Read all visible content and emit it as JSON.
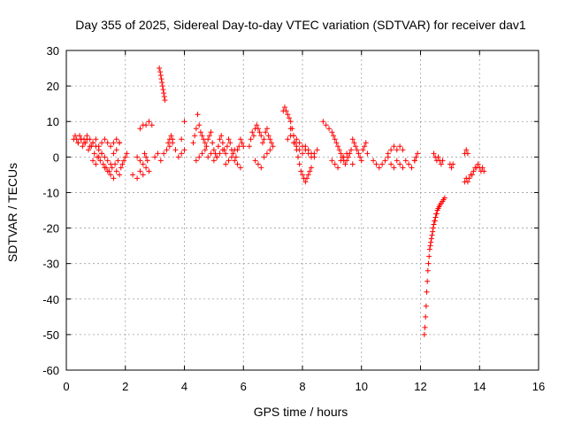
{
  "chart_data": {
    "type": "scatter",
    "title": "Day 355 of 2025, Sidereal Day-to-day VTEC variation (SDTVAR) for receiver dav1",
    "xlabel": "GPS time / hours",
    "ylabel": "SDTVAR / TECUs",
    "xlim": [
      0,
      16
    ],
    "ylim": [
      -60,
      30
    ],
    "xticks": [
      0,
      2,
      4,
      6,
      8,
      10,
      12,
      14,
      16
    ],
    "yticks": [
      -60,
      -50,
      -40,
      -30,
      -20,
      -10,
      0,
      10,
      20,
      30
    ],
    "grid": true,
    "marker": "+",
    "color": "#ff0000",
    "series": [
      {
        "name": "dav1",
        "x": [
          0.25,
          0.3,
          0.35,
          0.4,
          0.45,
          0.5,
          0.55,
          0.6,
          0.65,
          0.7,
          0.75,
          0.8,
          0.85,
          0.9,
          0.95,
          1.0,
          1.05,
          1.1,
          1.15,
          1.2,
          1.25,
          1.3,
          1.35,
          1.4,
          1.45,
          1.5,
          1.55,
          1.6,
          1.65,
          1.7,
          1.75,
          1.8,
          1.85,
          1.9,
          1.95,
          2.0,
          2.05,
          0.4,
          0.5,
          0.6,
          0.7,
          0.8,
          0.9,
          1.0,
          1.1,
          1.2,
          1.3,
          1.4,
          1.5,
          1.6,
          1.7,
          1.8,
          0.9,
          1.0,
          1.1,
          1.2,
          1.3,
          1.4,
          1.5,
          1.6,
          1.7,
          1.8,
          2.25,
          2.4,
          2.5,
          2.6,
          2.7,
          2.8,
          2.4,
          2.5,
          2.6,
          2.65,
          2.7,
          2.75,
          2.5,
          2.6,
          2.7,
          2.8,
          2.9,
          3.0,
          3.1,
          3.15,
          3.18,
          3.2,
          3.22,
          3.24,
          3.26,
          3.28,
          3.3,
          3.32,
          3.34,
          3.2,
          3.3,
          3.4,
          3.5,
          3.6,
          3.7,
          3.8,
          3.9,
          4.0,
          3.45,
          3.5,
          3.55,
          3.6,
          3.9,
          4.0,
          4.3,
          4.35,
          4.4,
          4.45,
          4.5,
          4.55,
          4.6,
          4.65,
          4.7,
          4.75,
          4.8,
          4.85,
          4.9,
          4.95,
          5.0,
          5.05,
          5.1,
          5.15,
          5.2,
          5.25,
          5.3,
          5.35,
          5.4,
          5.45,
          5.5,
          5.55,
          5.6,
          5.65,
          5.7,
          5.75,
          5.8,
          5.85,
          5.9,
          5.95,
          6.0,
          4.4,
          4.5,
          4.6,
          4.7,
          4.8,
          4.9,
          5.0,
          5.1,
          5.2,
          5.3,
          5.4,
          5.5,
          5.6,
          5.7,
          5.8,
          5.9,
          6.2,
          6.25,
          6.3,
          6.35,
          6.4,
          6.45,
          6.5,
          6.55,
          6.6,
          6.65,
          6.7,
          6.75,
          6.8,
          6.85,
          6.9,
          6.95,
          7.0,
          6.4,
          6.5,
          6.6,
          6.7,
          6.8,
          6.9,
          7.35,
          7.4,
          7.45,
          7.5,
          7.55,
          7.6,
          7.65,
          7.7,
          7.75,
          7.8,
          7.85,
          7.9,
          7.95,
          8.0,
          8.05,
          8.1,
          8.15,
          8.2,
          8.25,
          8.3,
          7.6,
          7.7,
          7.8,
          7.9,
          8.0,
          8.1,
          8.2,
          8.3,
          8.4,
          8.5,
          7.5,
          7.6,
          7.7,
          7.8,
          7.9,
          8.0,
          8.1,
          8.2,
          8.3,
          8.4,
          8.7,
          8.8,
          8.9,
          9.0,
          9.05,
          9.1,
          9.15,
          9.2,
          9.25,
          9.3,
          9.35,
          9.4,
          9.45,
          9.5,
          9.55,
          9.6,
          9.65,
          9.7,
          9.0,
          9.1,
          9.2,
          9.3,
          9.4,
          9.5,
          9.7,
          9.75,
          9.8,
          9.85,
          9.9,
          9.95,
          10.0,
          10.05,
          10.1,
          10.15,
          10.2,
          10.4,
          10.5,
          10.6,
          10.7,
          10.8,
          10.9,
          11.0,
          11.1,
          11.2,
          11.3,
          11.4,
          11.5,
          11.6,
          11.7,
          11.8,
          10.9,
          11.0,
          11.1,
          11.2,
          11.3,
          11.4,
          11.8,
          11.85,
          11.9,
          12.13,
          12.15,
          12.17,
          12.19,
          12.21,
          12.23,
          12.25,
          12.27,
          12.29,
          12.31,
          12.33,
          12.35,
          12.37,
          12.39,
          12.41,
          12.43,
          12.45,
          12.47,
          12.49,
          12.51,
          12.53,
          12.55,
          12.57,
          12.6,
          12.63,
          12.66,
          12.7,
          12.74,
          12.78,
          12.82,
          12.45,
          12.5,
          12.55,
          12.6,
          12.65,
          12.7,
          12.75,
          13.0,
          13.05,
          13.1,
          13.5,
          13.55,
          13.6,
          13.65,
          13.7,
          13.75,
          13.8,
          13.85,
          13.9,
          13.95,
          14.0,
          14.05,
          14.1,
          14.15,
          13.5,
          13.55,
          13.6
        ],
        "y": [
          5,
          6,
          5,
          4,
          6,
          5,
          3,
          5,
          4,
          6,
          2,
          5,
          3,
          4,
          1,
          3,
          0,
          2,
          -1,
          1,
          -2,
          0,
          -3,
          -1,
          -4,
          -5,
          -3,
          -6,
          -2,
          -4,
          -1,
          -5,
          -3,
          -2,
          -1,
          0,
          1,
          4,
          5,
          4,
          5,
          3,
          4,
          5,
          3,
          4,
          5,
          4,
          3,
          4,
          5,
          4,
          -1,
          -2,
          0,
          1,
          -3,
          -4,
          -2,
          1,
          2,
          4,
          -5,
          -6,
          -4,
          -5,
          -3,
          -4,
          0,
          -1,
          -2,
          1,
          0,
          -1,
          8,
          9,
          9,
          10,
          9,
          0,
          1,
          25,
          24,
          23,
          22,
          21,
          20,
          19,
          18,
          17,
          16,
          -1,
          1,
          2,
          3,
          4,
          2,
          0,
          1,
          2,
          4,
          5,
          6,
          5,
          5,
          10,
          4,
          6,
          8,
          12,
          9,
          7,
          6,
          5,
          4,
          3,
          5,
          6,
          7,
          4,
          2,
          1,
          0,
          3,
          5,
          6,
          4,
          2,
          1,
          3,
          5,
          4,
          2,
          1,
          -1,
          0,
          2,
          3,
          5,
          4,
          3,
          -1,
          0,
          1,
          2,
          0,
          1,
          -1,
          0,
          1,
          2,
          -2,
          -1,
          0,
          2,
          -2,
          -3,
          3,
          5,
          7,
          6,
          8,
          9,
          8,
          7,
          6,
          4,
          5,
          7,
          8,
          6,
          5,
          4,
          3,
          -1,
          -2,
          -3,
          0,
          1,
          2,
          13,
          14,
          13,
          12,
          11,
          10,
          8,
          6,
          4,
          2,
          0,
          -2,
          -4,
          -5,
          -6,
          -7,
          -6,
          -5,
          -4,
          -3,
          8,
          6,
          5,
          4,
          3,
          2,
          1,
          0,
          1,
          2,
          5,
          6,
          4,
          3,
          2,
          1,
          3,
          2,
          1,
          0,
          10,
          9,
          8,
          7,
          6,
          5,
          4,
          3,
          2,
          1,
          0,
          -1,
          -2,
          -1,
          0,
          1,
          2,
          -2,
          -1,
          -2,
          -3,
          -1,
          0,
          1,
          5,
          4,
          3,
          2,
          1,
          0,
          -1,
          2,
          3,
          4,
          1,
          -1,
          -2,
          -3,
          -2,
          -1,
          0,
          -2,
          -3,
          -1,
          -2,
          -3,
          -1,
          -2,
          -3,
          -1,
          1,
          2,
          3,
          2,
          3,
          2,
          -1,
          0,
          1,
          -50,
          -48,
          -45,
          -42,
          -38,
          -35,
          -32,
          -30,
          -28,
          -26,
          -25,
          -24,
          -23,
          -22,
          -21,
          -20,
          -19,
          -18,
          -18,
          -17,
          -16,
          -16,
          -15,
          -14.5,
          -14,
          -13.5,
          -13,
          -12.5,
          -12,
          -11.5,
          1,
          0,
          -1,
          0,
          -1,
          -2,
          -1,
          -2,
          -3,
          -2,
          -7,
          -6,
          -7,
          -6,
          -5,
          -5,
          -4,
          -3,
          -3,
          -2,
          -3,
          -4,
          -3,
          -4,
          1,
          2,
          1
        ]
      }
    ]
  }
}
